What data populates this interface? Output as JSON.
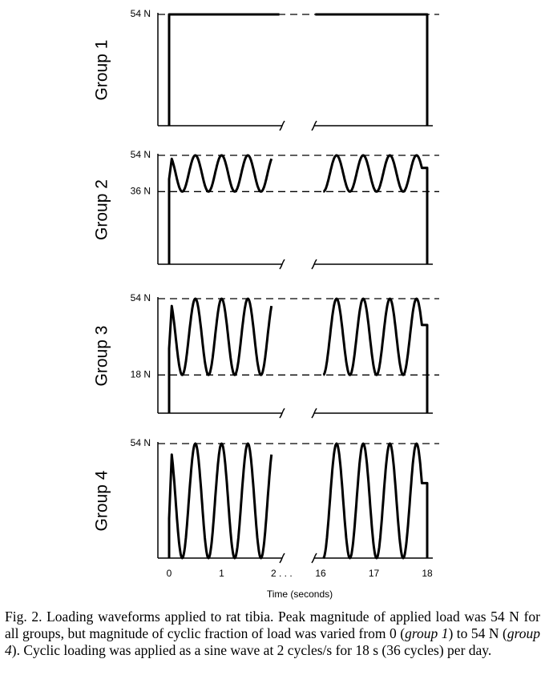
{
  "chart_data": [
    {
      "type": "step",
      "ylabel": "Group 1",
      "ylim": [
        0,
        54
      ],
      "yticks": [
        {
          "value": 54,
          "label": "54 N"
        }
      ]
    },
    {
      "type": "waveform",
      "ylabel": "Group 2",
      "ylim": [
        0,
        54
      ],
      "yticks": [
        {
          "value": 54,
          "label": "54 N"
        },
        {
          "value": 36,
          "label": "36 N"
        }
      ]
    },
    {
      "type": "waveform",
      "ylabel": "Group 3",
      "ylim": [
        0,
        54
      ],
      "yticks": [
        {
          "value": 54,
          "label": "54 N"
        },
        {
          "value": 18,
          "label": "18 N"
        }
      ]
    },
    {
      "type": "waveform",
      "ylabel": "Group 4",
      "ylim": [
        0,
        54
      ],
      "yticks": [
        {
          "value": 54,
          "label": "54 N"
        }
      ],
      "xticks": [
        0,
        1,
        {
          "value": 2,
          "label": "2 . . ."
        },
        16,
        17,
        18
      ],
      "xlabel": "Time (seconds)"
    }
  ],
  "caption": [
    "Fig. 2. Loading waveforms applied to rat tibia. Peak magnitude of applied load was 54 N for all groups, but magnitude of cyclic fraction of load was varied from 0 (",
    "group 1",
    ") to 54 N (",
    "group 4",
    "). Cyclic loading was applied as a sine wave at 2 cycles/s for 18 s (36 cycles) per day."
  ]
}
